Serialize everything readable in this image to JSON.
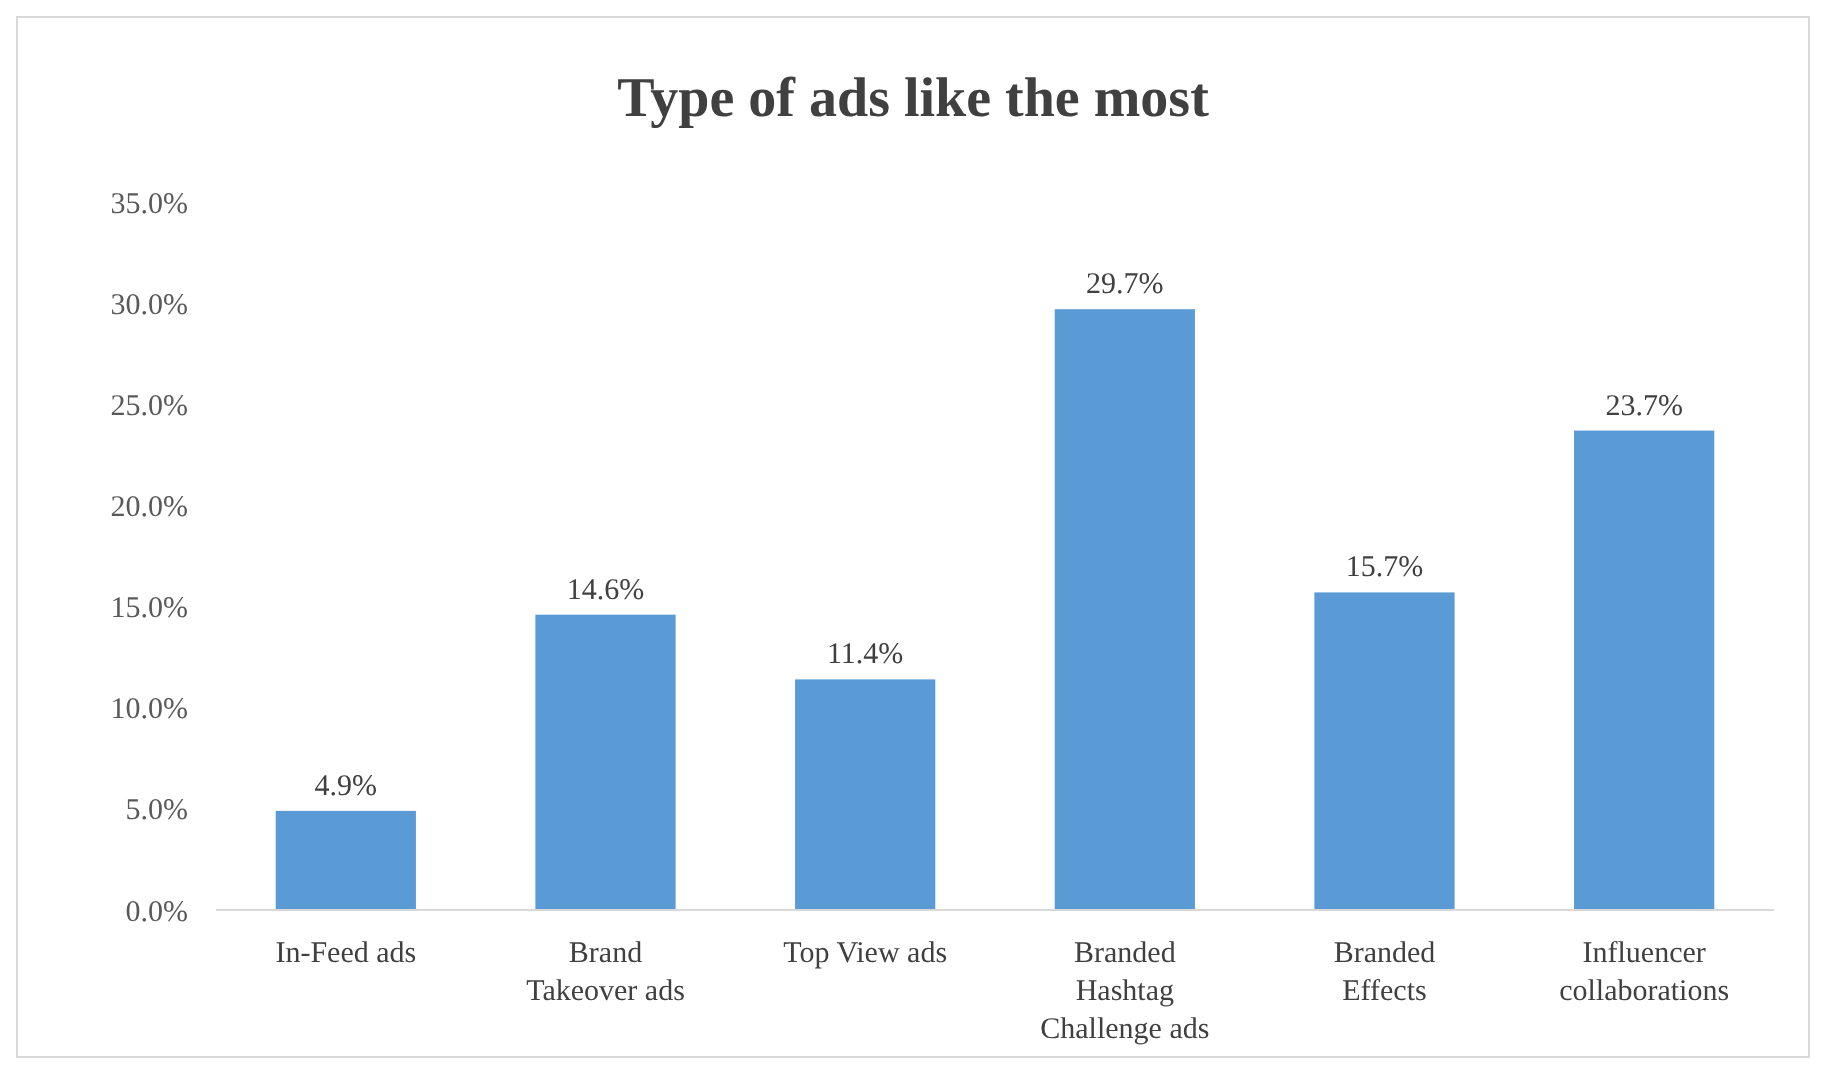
{
  "chart_data": {
    "type": "bar",
    "title": "Type of ads like the most",
    "categories": [
      "In-Feed ads",
      "Brand Takeover ads",
      "Top View ads",
      "Branded Hashtag Challenge ads",
      "Branded Effects",
      "Influencer collaborations"
    ],
    "values": [
      4.9,
      14.6,
      11.4,
      29.7,
      15.7,
      23.7
    ],
    "value_labels": [
      "4.9%",
      "14.6%",
      "11.4%",
      "29.7%",
      "15.7%",
      "23.7%"
    ],
    "color": "#5b9bd5",
    "ylim": [
      0,
      35
    ],
    "yticks": [
      {
        "value": 0,
        "label": "0.0%"
      },
      {
        "value": 5,
        "label": "5.0%"
      },
      {
        "value": 10,
        "label": "10.0%"
      },
      {
        "value": 15,
        "label": "15.0%"
      },
      {
        "value": 20,
        "label": "20.0%"
      },
      {
        "value": 25,
        "label": "25.0%"
      },
      {
        "value": 30,
        "label": "30.0%"
      },
      {
        "value": 35,
        "label": "35.0%"
      }
    ],
    "grid": false
  }
}
